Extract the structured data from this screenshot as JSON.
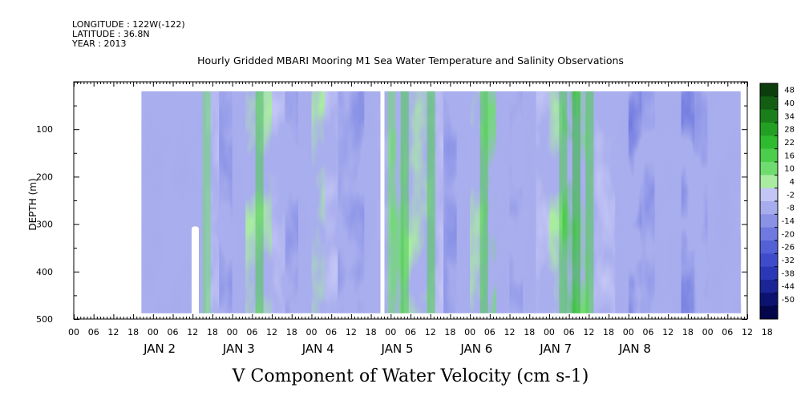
{
  "header": {
    "longitude": "LONGITUDE : 122W(-122)",
    "latitude": "LATITUDE : 36.8N",
    "year": "YEAR : 2013"
  },
  "chart_data": {
    "type": "heatmap",
    "title": "Hourly Gridded MBARI Mooring M1 Sea Water Temperature and Salinity Observations",
    "xlabel": "V Component of Water Velocity (cm s-1)",
    "ylabel": "DEPTH (m)",
    "x_range_hours_from_jan2_00": [
      -24,
      180
    ],
    "ylim": [
      500,
      0
    ],
    "y_ticks": [
      100,
      200,
      300,
      400,
      500
    ],
    "x_hour_tick_labels": [
      "00",
      "06",
      "12",
      "18",
      "00",
      "06",
      "12",
      "18",
      "00",
      "06",
      "12",
      "18",
      "00",
      "06",
      "12",
      "18",
      "00",
      "06",
      "12",
      "18",
      "00",
      "06",
      "12",
      "18",
      "00",
      "06",
      "12",
      "18",
      "00",
      "06",
      "12",
      "18",
      "00",
      "06",
      "12",
      "18"
    ],
    "x_day_labels": [
      "JAN  2",
      "JAN  3",
      "JAN  4",
      "JAN  5",
      "JAN  6",
      "JAN  7",
      "JAN  8"
    ],
    "data_extent": {
      "start_hour": -3.5,
      "end_hour": 178,
      "min_depth_m": 20,
      "max_depth_m": 488
    },
    "colorbar": {
      "labels": [
        "48",
        "40",
        "34",
        "28",
        "22",
        "16",
        "10",
        "4",
        "-2",
        "-8",
        "-14",
        "-20",
        "-26",
        "-32",
        "-38",
        "-44",
        "-50"
      ],
      "colors": [
        "#0c3d0c",
        "#125e12",
        "#1a7f1a",
        "#23a023",
        "#2fbb2f",
        "#4ccd4c",
        "#6fdc6f",
        "#a9eca1",
        "#c3c6f4",
        "#a7aced",
        "#8a92e6",
        "#6f79df",
        "#5360d6",
        "#3e4ccc",
        "#2a38b8",
        "#1b2596",
        "#0b1270",
        "#03064a"
      ]
    },
    "gaps_hours": [
      69.5
    ],
    "value_fields": {
      "description_free": "",
      "columns": [
        {
          "t": -3.5,
          "v": -6
        },
        {
          "t": 0,
          "v": 2
        },
        {
          "t": 4,
          "v": -10
        },
        {
          "t": 8,
          "v": 8
        },
        {
          "t": 12,
          "v": -14
        },
        {
          "t": 16,
          "v": 10
        },
        {
          "t": 20,
          "v": -4
        },
        {
          "t": 24,
          "v": -12
        },
        {
          "t": 28,
          "v": 6
        },
        {
          "t": 32,
          "v": 12
        },
        {
          "t": 36,
          "v": 8
        },
        {
          "t": 40,
          "v": -6
        },
        {
          "t": 44,
          "v": -14
        },
        {
          "t": 48,
          "v": 4
        },
        {
          "t": 52,
          "v": 8
        },
        {
          "t": 56,
          "v": -8
        },
        {
          "t": 60,
          "v": -12
        },
        {
          "t": 64,
          "v": -4
        },
        {
          "t": 68,
          "v": -8
        },
        {
          "t": 72,
          "v": 10
        },
        {
          "t": 76,
          "v": 14
        },
        {
          "t": 80,
          "v": 4
        },
        {
          "t": 84,
          "v": 12
        },
        {
          "t": 88,
          "v": -8
        },
        {
          "t": 92,
          "v": -12
        },
        {
          "t": 96,
          "v": 6
        },
        {
          "t": 100,
          "v": 14
        },
        {
          "t": 104,
          "v": 8
        },
        {
          "t": 108,
          "v": -10
        },
        {
          "t": 112,
          "v": -14
        },
        {
          "t": 116,
          "v": 8
        },
        {
          "t": 120,
          "v": -4
        },
        {
          "t": 124,
          "v": 16
        },
        {
          "t": 128,
          "v": 20
        },
        {
          "t": 132,
          "v": 12
        },
        {
          "t": 136,
          "v": -4
        },
        {
          "t": 140,
          "v": 4
        },
        {
          "t": 144,
          "v": -12
        },
        {
          "t": 148,
          "v": -16
        },
        {
          "t": 152,
          "v": -8
        },
        {
          "t": 156,
          "v": 2
        },
        {
          "t": 160,
          "v": -14
        },
        {
          "t": 164,
          "v": -18
        },
        {
          "t": 168,
          "v": -6
        },
        {
          "t": 172,
          "v": 4
        },
        {
          "t": 178,
          "v": -8
        }
      ]
    }
  }
}
